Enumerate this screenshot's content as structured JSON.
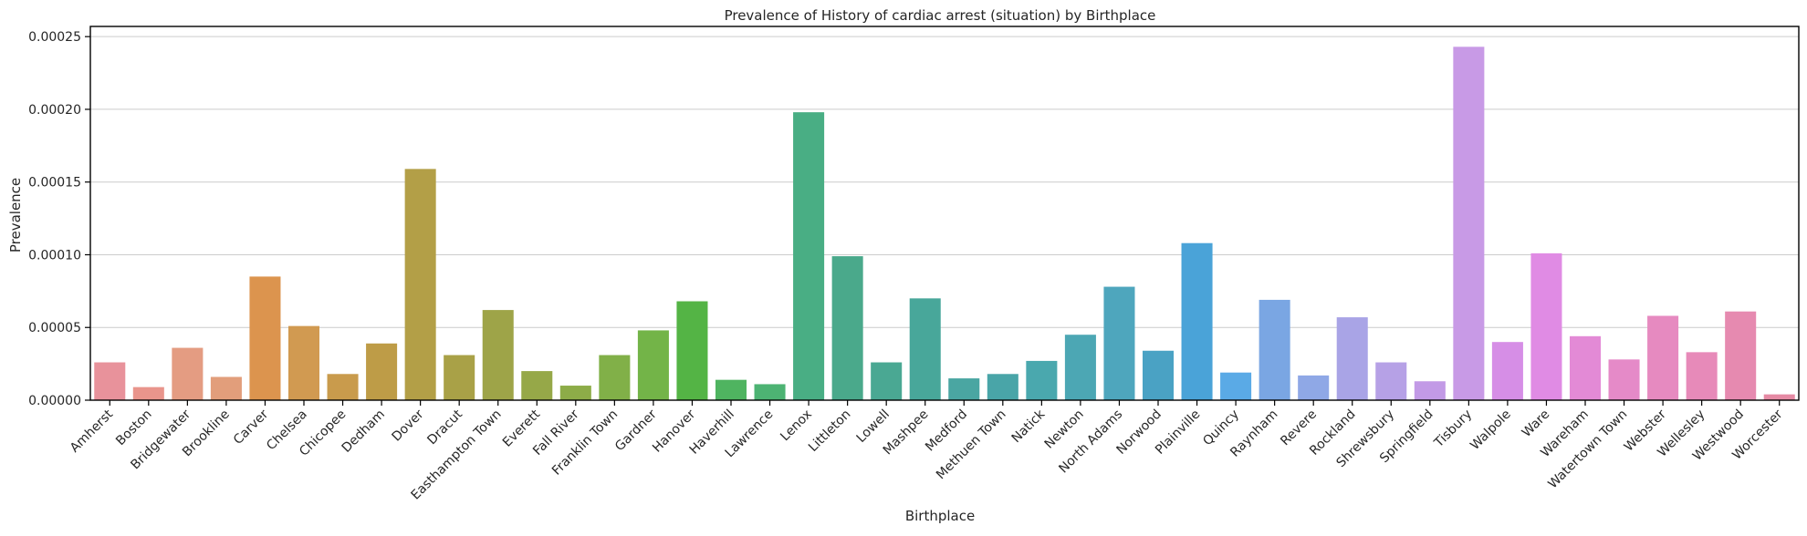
{
  "chart_data": {
    "type": "bar",
    "title": "Prevalence of History of cardiac arrest (situation) by Birthplace",
    "xlabel": "Birthplace",
    "ylabel": "Prevalence",
    "ylim": [
      0,
      0.000257
    ],
    "yticks": [
      "0.00000",
      "0.00005",
      "0.00010",
      "0.00015",
      "0.00020",
      "0.00025"
    ],
    "ytick_values": [
      0,
      5e-05,
      0.0001,
      0.00015,
      0.0002,
      0.00025
    ],
    "grid": "horizontal",
    "legend": "none",
    "categories": [
      "Amherst",
      "Boston",
      "Bridgewater",
      "Brookline",
      "Carver",
      "Chelsea",
      "Chicopee",
      "Dedham",
      "Dover",
      "Dracut",
      "Easthampton Town",
      "Everett",
      "Fall River",
      "Franklin Town",
      "Gardner",
      "Hanover",
      "Haverhill",
      "Lawrence",
      "Lenox",
      "Littleton",
      "Lowell",
      "Mashpee",
      "Medford",
      "Methuen Town",
      "Natick",
      "Newton",
      "North Adams",
      "Norwood",
      "Plainville",
      "Quincy",
      "Raynham",
      "Revere",
      "Rockland",
      "Shrewsbury",
      "Springfield",
      "Tisbury",
      "Walpole",
      "Ware",
      "Wareham",
      "Watertown Town",
      "Webster",
      "Wellesley",
      "Westwood",
      "Worcester"
    ],
    "values": [
      2.6e-05,
      9e-06,
      3.6e-05,
      1.6e-05,
      8.5e-05,
      5.1e-05,
      1.8e-05,
      3.9e-05,
      0.000159,
      3.1e-05,
      6.2e-05,
      2e-05,
      1e-05,
      3.1e-05,
      4.8e-05,
      6.8e-05,
      1.4e-05,
      1.1e-05,
      0.000198,
      9.9e-05,
      2.6e-05,
      7e-05,
      1.5e-05,
      1.8e-05,
      2.7e-05,
      4.5e-05,
      7.8e-05,
      3.4e-05,
      0.000108,
      1.9e-05,
      6.9e-05,
      1.7e-05,
      5.7e-05,
      2.6e-05,
      1.3e-05,
      0.000243,
      4e-05,
      0.000101,
      4.4e-05,
      2.8e-05,
      5.8e-05,
      3.3e-05,
      6.1e-05,
      4e-06
    ],
    "colors": [
      "#e8929b",
      "#e9958c",
      "#e49c82",
      "#e29e7b",
      "#dc944e",
      "#d19a51",
      "#c99b4c",
      "#be9c47",
      "#b39f47",
      "#a9a147",
      "#9ea448",
      "#96a848",
      "#8dac48",
      "#81b048",
      "#73b448",
      "#54b445",
      "#4fb460",
      "#4db373",
      "#49ae84",
      "#4aa98b",
      "#4aa893",
      "#48a79a",
      "#4aa6a2",
      "#49a5a8",
      "#4aa8ae",
      "#4ca7b4",
      "#4ea6bd",
      "#4aa2c4",
      "#4aa3d8",
      "#5aaae6",
      "#7aa6e3",
      "#8fa8e6",
      "#a9a4e6",
      "#b6a1e6",
      "#c29ae6",
      "#c89ae6",
      "#d68ee6",
      "#e08be4",
      "#e38ad6",
      "#e58ac8",
      "#e68ac0",
      "#e78ab9",
      "#e68ab0",
      "#e58aa4"
    ]
  }
}
